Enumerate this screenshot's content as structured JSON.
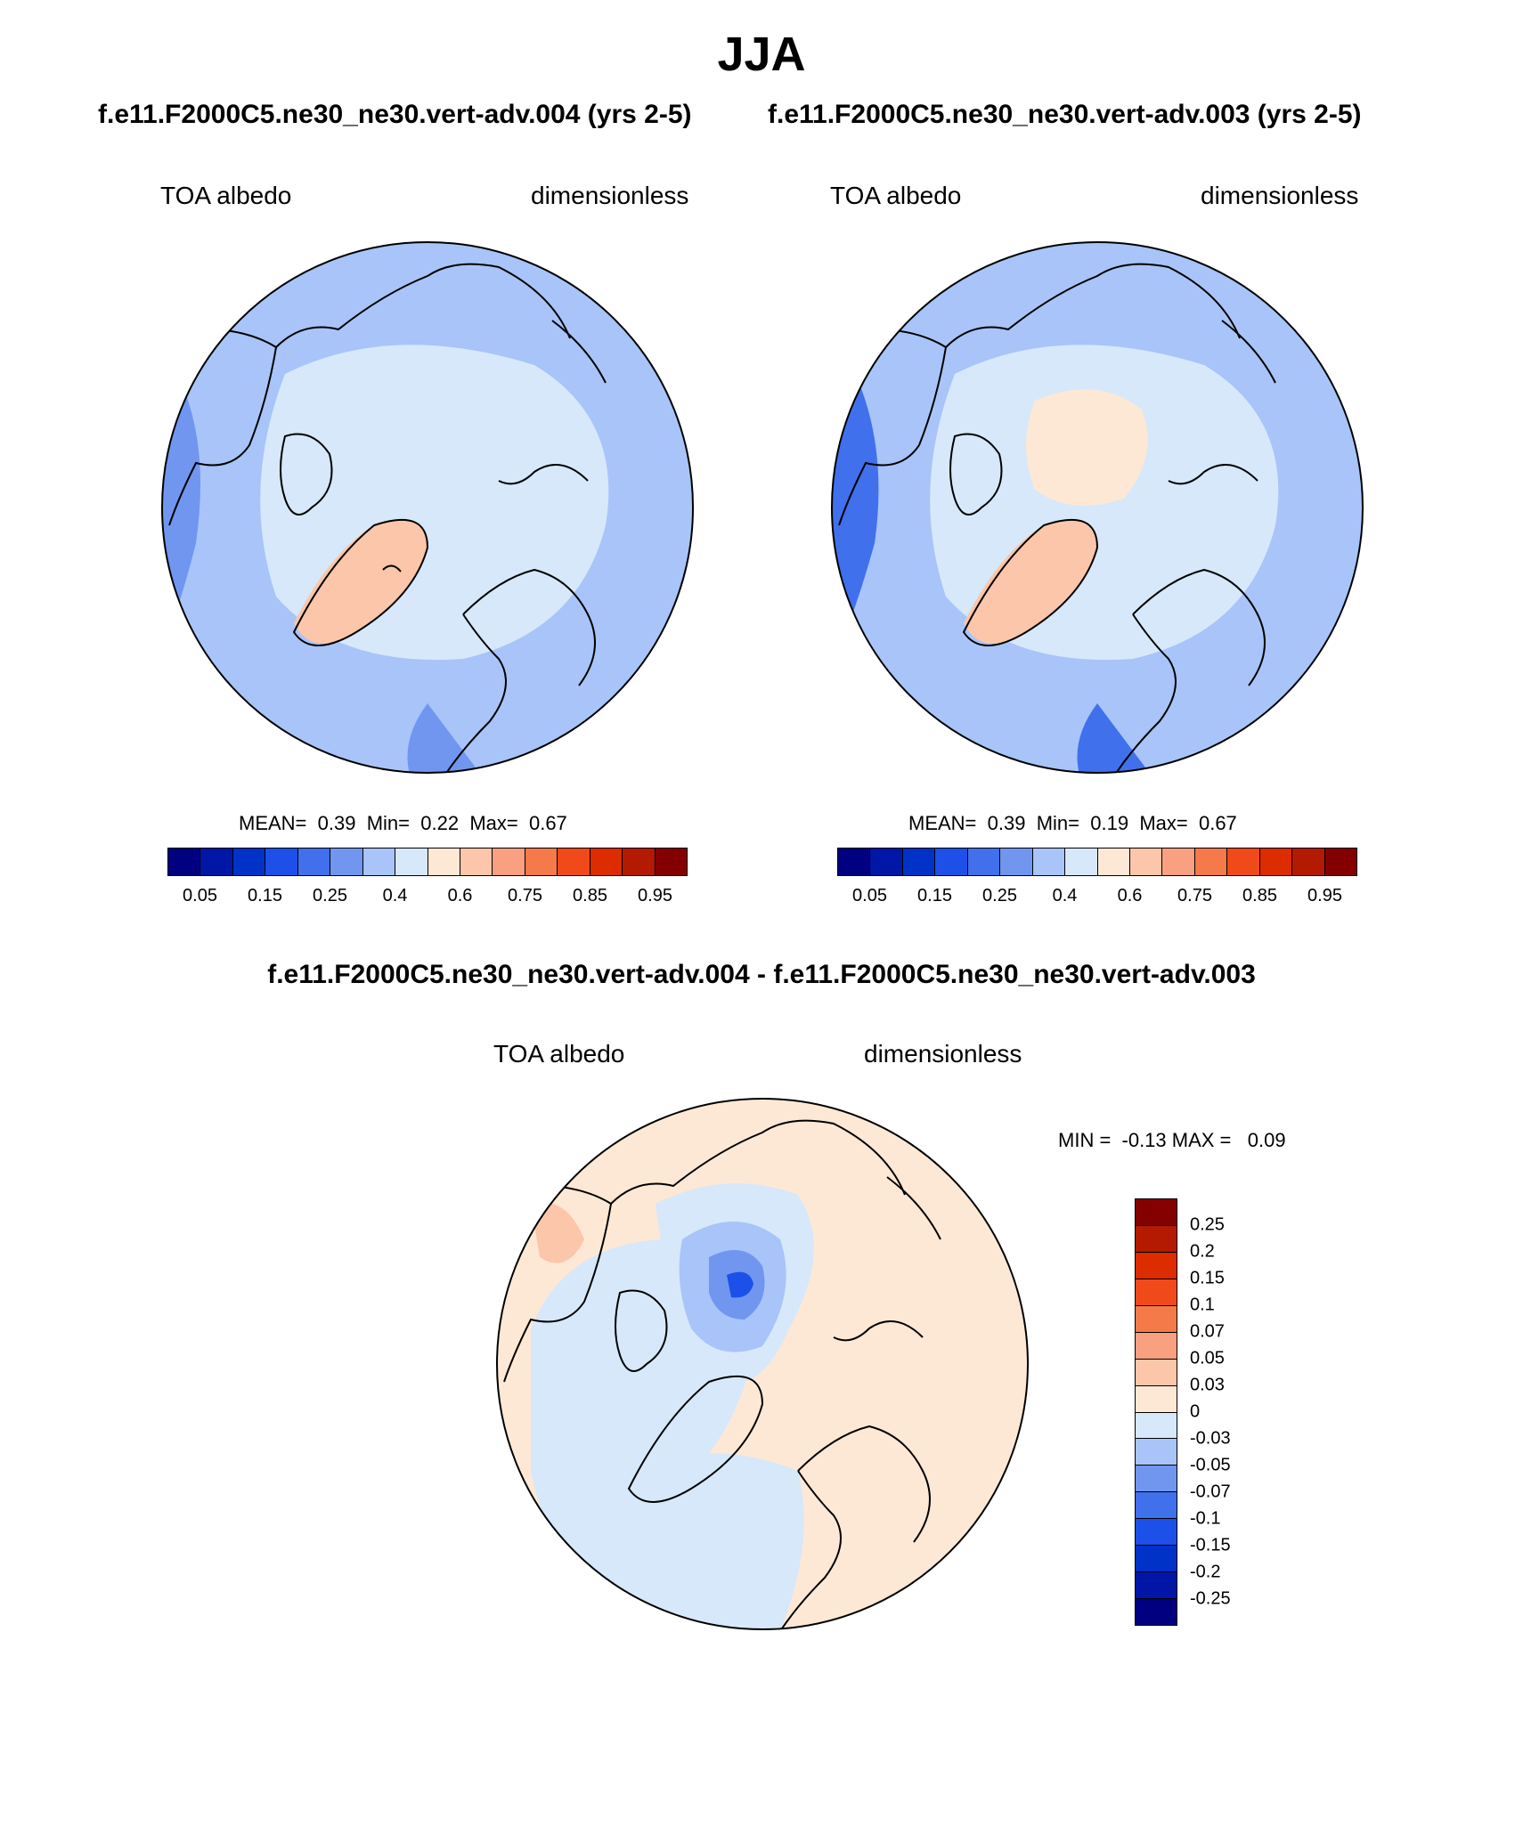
{
  "title": "JJA",
  "panels": [
    {
      "case_title": "f.e11.F2000C5.ne30_ne30.vert-adv.004 (yrs 2-5)",
      "variable": "TOA albedo",
      "units": "dimensionless",
      "stats": {
        "mean_label": "MEAN=",
        "mean": "0.39",
        "min_label": "Min=",
        "min": "0.22",
        "max_label": "Max=",
        "max": "0.67"
      }
    },
    {
      "case_title": "f.e11.F2000C5.ne30_ne30.vert-adv.003 (yrs 2-5)",
      "variable": "TOA albedo",
      "units": "dimensionless",
      "stats": {
        "mean_label": "MEAN=",
        "mean": "0.39",
        "min_label": "Min=",
        "min": "0.19",
        "max_label": "Max=",
        "max": "0.67"
      }
    }
  ],
  "diff_panel": {
    "title": "f.e11.F2000C5.ne30_ne30.vert-adv.004 - f.e11.F2000C5.ne30_ne30.vert-adv.003",
    "variable": "TOA albedo",
    "units": "dimensionless",
    "minmax": "MIN =  -0.13 MAX =   0.09"
  },
  "colorbar_abs": {
    "colors": [
      "#000080",
      "#0016a6",
      "#0032c8",
      "#1c50e8",
      "#4070ec",
      "#7096f0",
      "#a8c4f8",
      "#d6e8fa",
      "#fde8d6",
      "#fbc6aa",
      "#f8a080",
      "#f47a4a",
      "#f04a1a",
      "#dc2c00",
      "#b41a00",
      "#840000"
    ],
    "tick_labels": [
      "0.05",
      "0.15",
      "0.25",
      "0.4",
      "0.6",
      "0.75",
      "0.85",
      "0.95"
    ]
  },
  "colorbar_diff": {
    "colors": [
      "#840000",
      "#b41a00",
      "#dc2c00",
      "#f04a1a",
      "#f47a4a",
      "#f8a080",
      "#fbc6aa",
      "#fde8d6",
      "#d6e8fa",
      "#a8c4f8",
      "#7096f0",
      "#4070ec",
      "#1c50e8",
      "#0032c8",
      "#0016a6",
      "#000080"
    ],
    "tick_labels": [
      "0.25",
      "0.2",
      "0.15",
      "0.1",
      "0.07",
      "0.05",
      "0.03",
      "0",
      "-0.03",
      "-0.05",
      "-0.07",
      "-0.1",
      "-0.15",
      "-0.2",
      "-0.25"
    ]
  },
  "colors": {
    "base_blue": "#a8c4f8",
    "light_blue": "#d6e8fa",
    "mid_blue": "#7096f0",
    "dark_blue": "#4070ec",
    "light_orange": "#fde8d6",
    "orange": "#fbc6aa",
    "deep_orange": "#f8a080",
    "coast": "#000000"
  }
}
